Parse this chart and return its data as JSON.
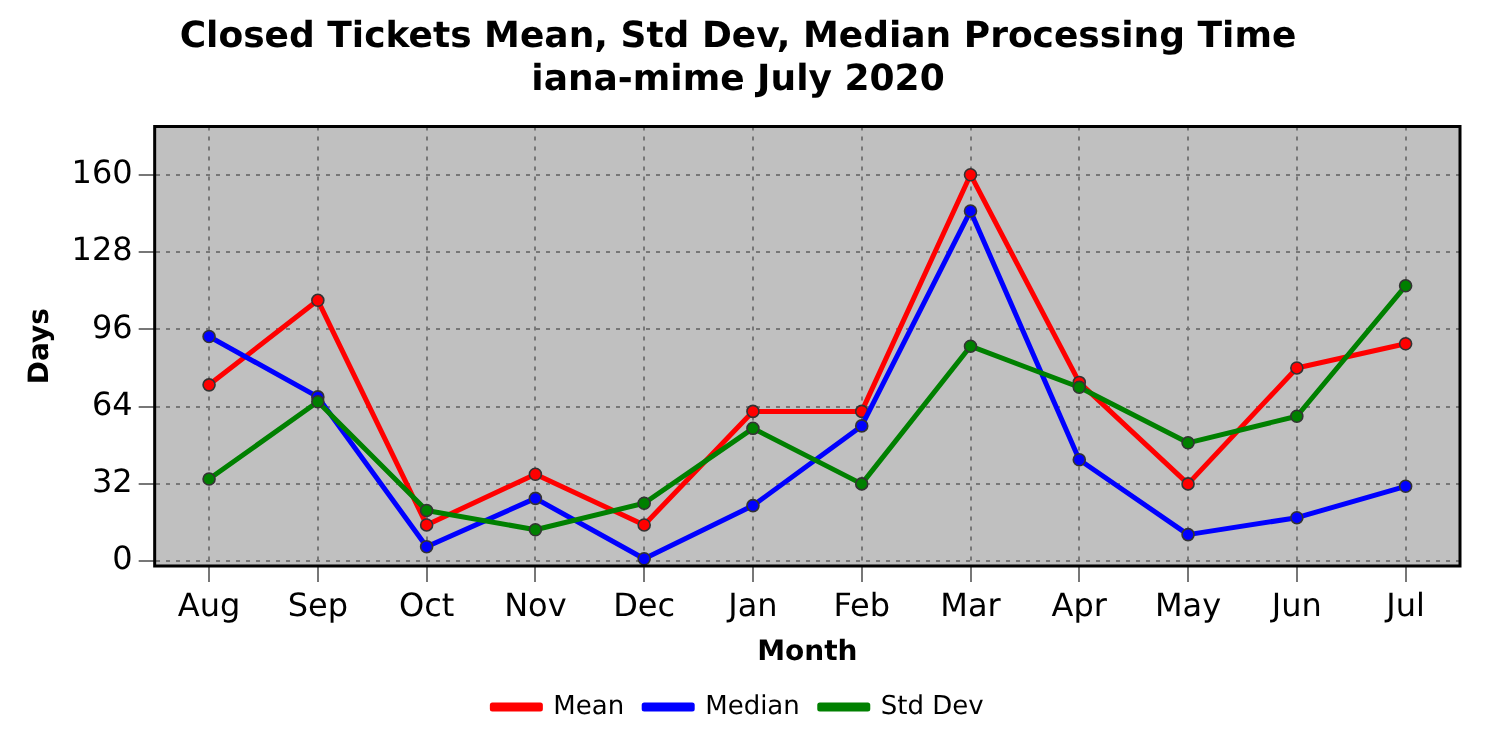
{
  "chart_data": {
    "type": "line",
    "title": "Closed Tickets Mean, Std Dev, Median Processing Time",
    "subtitle": "iana-mime July 2020",
    "xlabel": "Month",
    "ylabel": "Days",
    "categories": [
      "Aug",
      "Sep",
      "Oct",
      "Nov",
      "Dec",
      "Jan",
      "Feb",
      "Mar",
      "Apr",
      "May",
      "Jun",
      "Jul"
    ],
    "series": [
      {
        "name": "Mean",
        "color": "#ff0000",
        "values": [
          73,
          108,
          15,
          36,
          15,
          62,
          62,
          160,
          74,
          32,
          80,
          90
        ]
      },
      {
        "name": "Median",
        "color": "#0000ff",
        "values": [
          93,
          68,
          6,
          26,
          1,
          23,
          56,
          145,
          42,
          11,
          18,
          31
        ]
      },
      {
        "name": "Std Dev",
        "color": "#008000",
        "values": [
          34,
          66,
          21,
          13,
          24,
          55,
          32,
          89,
          72,
          49,
          60,
          114
        ]
      }
    ],
    "ylim": [
      -2,
      180
    ],
    "yticks": [
      0,
      32,
      64,
      96,
      128,
      160
    ],
    "grid": true,
    "line_style": "solid",
    "marker": "circle",
    "legend": "bottom"
  }
}
